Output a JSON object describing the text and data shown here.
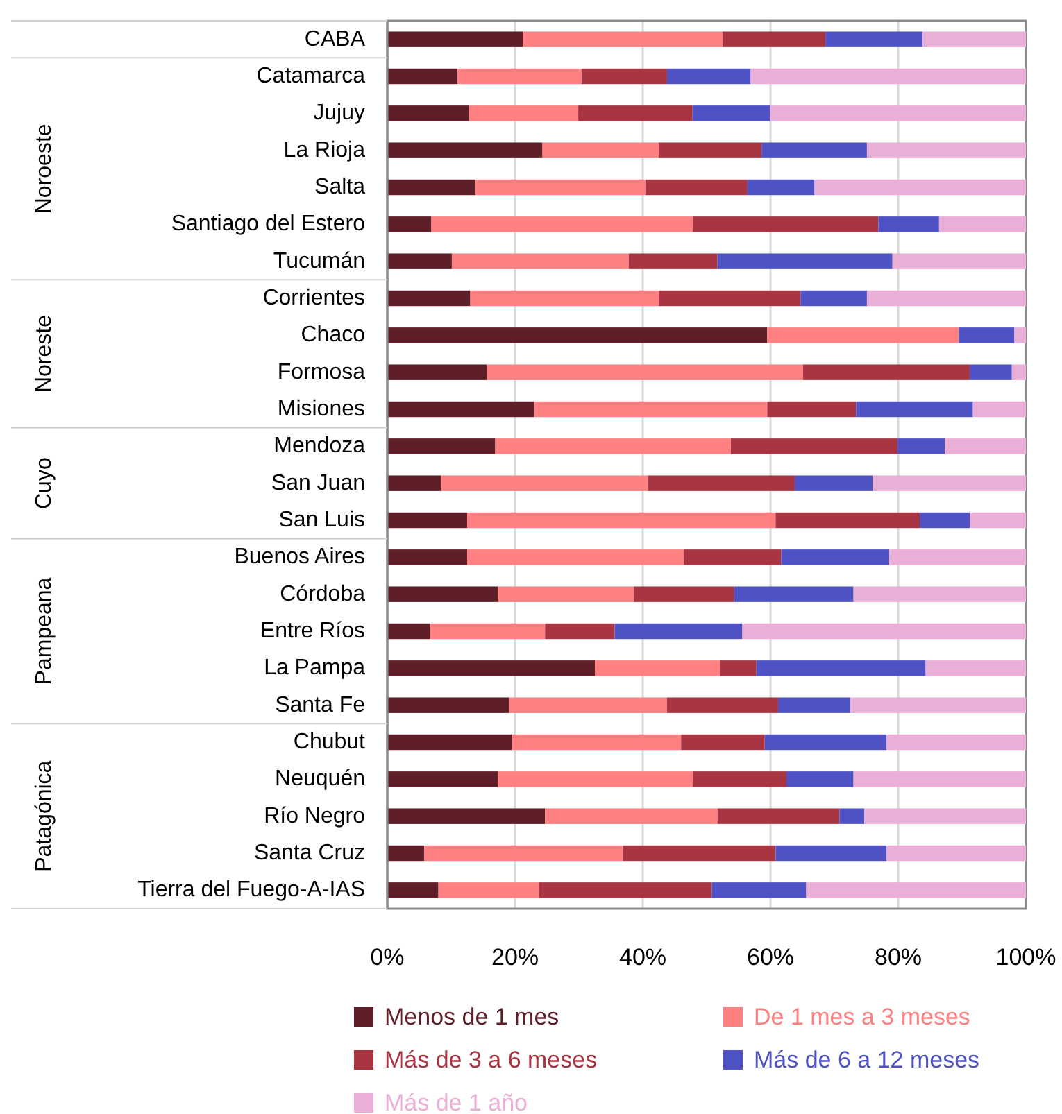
{
  "chart_data": {
    "type": "bar",
    "orientation": "horizontal",
    "stacked": true,
    "categories": [
      "CABA",
      "Catamarca",
      "Jujuy",
      "La Rioja",
      "Salta",
      "Santiago del Estero",
      "Tucumán",
      "Corrientes",
      "Chaco",
      "Formosa",
      "Misiones",
      "Mendoza",
      "San Juan",
      "San Luis",
      "Buenos Aires",
      "Córdoba",
      "Entre Ríos",
      "La Pampa",
      "Santa Fe",
      "Chubut",
      "Neuquén",
      "Río Negro",
      "Santa Cruz",
      "Tierra del Fuego-A-IAS"
    ],
    "series": [
      {
        "name": "Menos de 1 mes",
        "color": "#5f1f28",
        "values": [
          21.2,
          11.0,
          12.8,
          24.3,
          13.8,
          6.9,
          10.1,
          13.0,
          59.5,
          15.6,
          23.0,
          16.9,
          8.4,
          12.5,
          12.5,
          17.3,
          6.7,
          32.5,
          19.1,
          19.5,
          17.3,
          24.7,
          5.8,
          8.0
        ]
      },
      {
        "name": "De 1 mes a 3 meses",
        "color": "#ff8080",
        "values": [
          31.3,
          19.4,
          17.1,
          18.2,
          26.6,
          40.9,
          27.7,
          29.5,
          30.0,
          49.5,
          36.5,
          36.9,
          32.4,
          48.3,
          33.9,
          21.3,
          18.0,
          19.6,
          24.7,
          26.5,
          30.5,
          27.0,
          31.1,
          15.8
        ]
      },
      {
        "name": "Más de 3 a 6 meses",
        "color": "#a83541",
        "values": [
          16.1,
          13.4,
          17.9,
          16.1,
          16.0,
          29.1,
          13.9,
          22.2,
          0,
          26.1,
          13.9,
          26.1,
          23.0,
          22.6,
          15.3,
          15.7,
          10.9,
          5.7,
          17.4,
          13.1,
          14.7,
          19.1,
          23.9,
          27.0
        ]
      },
      {
        "name": "Más de 6 a 12 meses",
        "color": "#4f52c4",
        "values": [
          15.2,
          13.1,
          12.1,
          16.5,
          10.5,
          9.5,
          27.4,
          10.4,
          8.7,
          6.6,
          18.3,
          7.4,
          12.2,
          7.8,
          16.9,
          18.7,
          20.0,
          26.5,
          11.3,
          19.1,
          10.5,
          3.9,
          17.4,
          14.8
        ]
      },
      {
        "name": "Más de 1 año",
        "color": "#e9afd6",
        "values": [
          16.2,
          43.1,
          40.1,
          24.9,
          33.1,
          13.6,
          20.9,
          24.9,
          1.8,
          2.2,
          8.3,
          12.7,
          24.0,
          8.8,
          21.4,
          27.0,
          44.4,
          15.7,
          27.5,
          21.8,
          27.0,
          25.3,
          21.8,
          34.4
        ]
      }
    ],
    "xlim": [
      0,
      100
    ],
    "xticks": [
      {
        "value": 0,
        "label": "0%"
      },
      {
        "value": 20,
        "label": "20%"
      },
      {
        "value": 40,
        "label": "40%"
      },
      {
        "value": 60,
        "label": "60%"
      },
      {
        "value": 80,
        "label": "80%"
      },
      {
        "value": 100,
        "label": "100%"
      }
    ],
    "annotations": [
      "Noroeste",
      "Noreste",
      "Cuyo",
      "Pampeana",
      "Patagónica"
    ],
    "grid": "x",
    "legend": "bottom"
  }
}
